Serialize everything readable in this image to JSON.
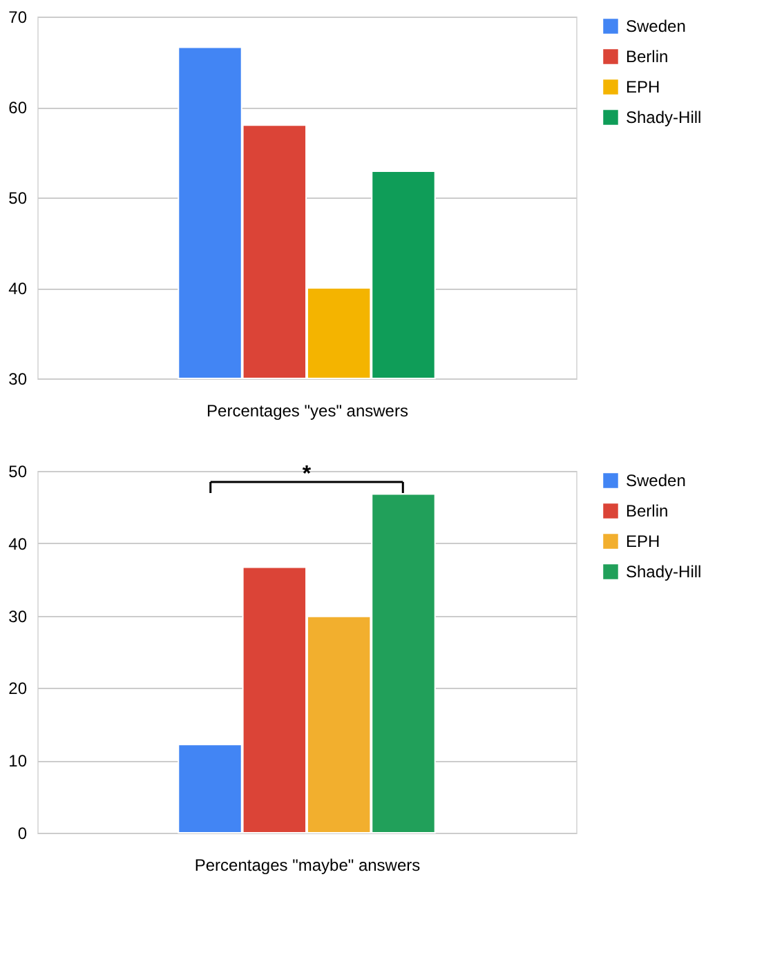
{
  "chart_data": [
    {
      "type": "bar",
      "categories": [
        null
      ],
      "xlabel": "Percentages \"yes\" answers",
      "series": [
        {
          "name": "Sweden",
          "color": "#4285f4",
          "values": [
            66.6
          ]
        },
        {
          "name": "Berlin",
          "color": "#db4437",
          "values": [
            58.0
          ]
        },
        {
          "name": "EPH",
          "color": "#f4b400",
          "values": [
            40.0
          ]
        },
        {
          "name": "Shady-Hill",
          "color": "#0f9d58",
          "values": [
            52.9
          ]
        }
      ],
      "ylim": [
        30,
        70
      ],
      "yticks": [
        30,
        40,
        50,
        60,
        70
      ],
      "grid": "y",
      "legend": "top right"
    },
    {
      "type": "bar",
      "categories": [
        null
      ],
      "xlabel": "Percentages \"maybe\" answers",
      "series": [
        {
          "name": "Sweden",
          "color": "#4285f4",
          "values": [
            12.2
          ]
        },
        {
          "name": "Berlin",
          "color": "#db4437",
          "values": [
            36.7
          ]
        },
        {
          "name": "EPH",
          "color": "#f2af2e",
          "values": [
            29.9
          ]
        },
        {
          "name": "Shady-Hill",
          "color": "#21a05a",
          "values": [
            46.8
          ]
        }
      ],
      "ylim": [
        0,
        50
      ],
      "yticks": [
        0,
        10,
        20,
        30,
        40,
        50
      ],
      "grid": "y",
      "legend": "top right",
      "annotations": [
        "*"
      ]
    }
  ]
}
